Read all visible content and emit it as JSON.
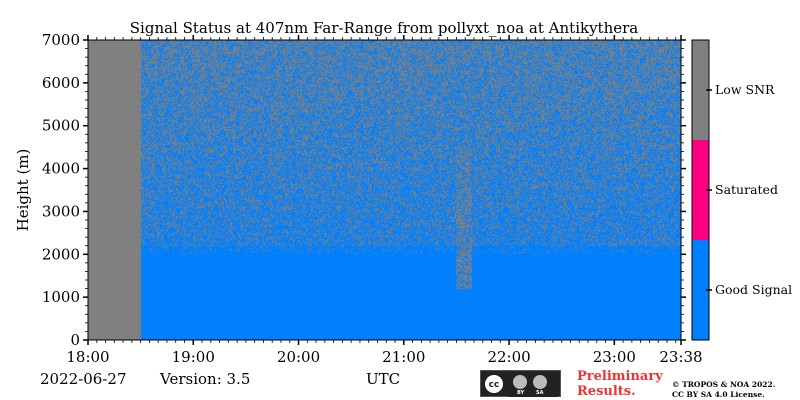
{
  "chart_data": {
    "type": "heatmap",
    "title": "Signal Status at 407nm Far-Range from pollyxt_noa at Antikythera",
    "xlabel": "",
    "ylabel": "Height (m)",
    "x_ticks": [
      "18:00",
      "19:00",
      "20:00",
      "21:00",
      "22:00",
      "23:00",
      "23:38"
    ],
    "y_ticks": [
      0,
      1000,
      2000,
      3000,
      4000,
      5000,
      6000,
      7000
    ],
    "xlim_hours": [
      18.0,
      23.6333
    ],
    "ylim": [
      0,
      7000
    ],
    "colorbar": {
      "categories": [
        {
          "label": "Low SNR",
          "color": "#808080"
        },
        {
          "label": "Saturated",
          "color": "#ff0080"
        },
        {
          "label": "Good Signal",
          "color": "#0080ff"
        }
      ]
    },
    "regions": [
      {
        "status": "Low SNR",
        "from_hour": 18.0,
        "to_hour": 18.5,
        "from_height": 0,
        "to_height": 7000
      },
      {
        "status": "Good Signal",
        "from_hour": 18.5,
        "to_hour": 23.6333,
        "from_height": 0,
        "to_height": 2200
      },
      {
        "status": "Good Signal / Low SNR mixed",
        "from_hour": 18.5,
        "to_hour": 23.6333,
        "from_height": 2200,
        "to_height": 7000
      },
      {
        "status": "Low SNR",
        "from_hour": 21.5,
        "to_hour": 21.65,
        "from_height": 1200,
        "to_height": 4500
      }
    ]
  },
  "footer": {
    "date": "2022-06-27",
    "version": "Version: 3.5",
    "utc_label": "UTC",
    "preliminary": "Preliminary Results.",
    "copyright_line1": "© TROPOS & NOA 2022.",
    "copyright_line2": "CC BY SA 4.0 License."
  },
  "license_badge": {
    "cc": "cc",
    "by": "BY",
    "sa": "SA"
  },
  "colors": {
    "low_snr": "#808080",
    "saturated": "#ff0080",
    "good": "#0080ff"
  }
}
